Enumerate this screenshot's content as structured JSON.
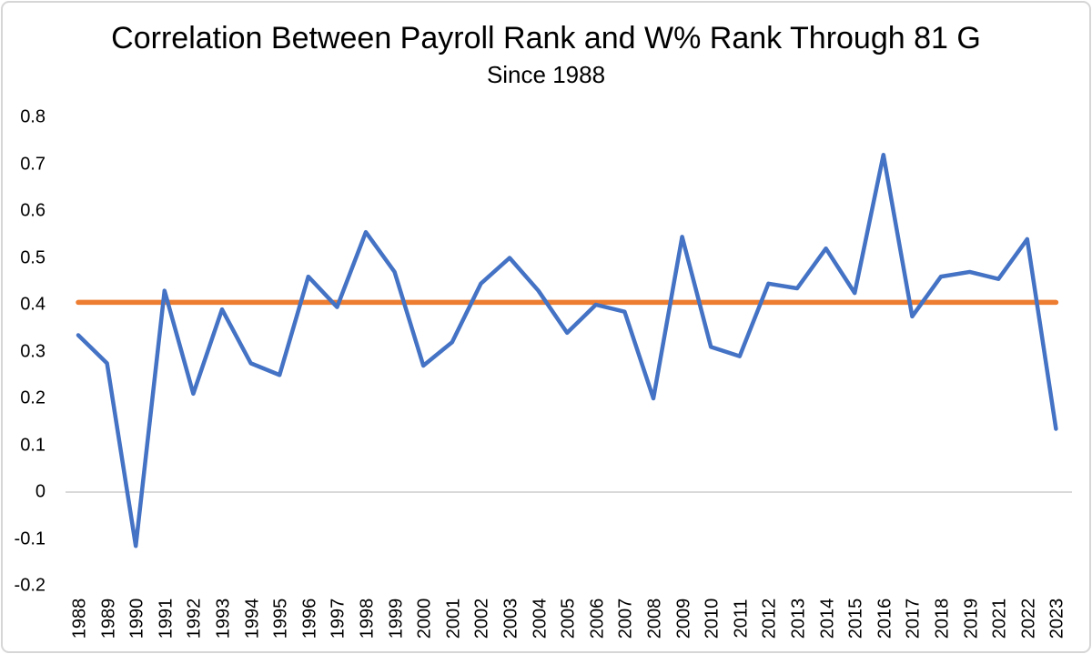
{
  "chart_data": {
    "type": "line",
    "title": "Correlation Between Payroll Rank and W% Rank Through 81 G",
    "subtitle": "Since 1988",
    "categories": [
      "1988",
      "1989",
      "1990",
      "1991",
      "1992",
      "1993",
      "1994",
      "1995",
      "1996",
      "1997",
      "1998",
      "1999",
      "2000",
      "2001",
      "2002",
      "2003",
      "2004",
      "2005",
      "2006",
      "2007",
      "2008",
      "2009",
      "2010",
      "2011",
      "2012",
      "2013",
      "2014",
      "2015",
      "2016",
      "2017",
      "2018",
      "2019",
      "2021",
      "2022",
      "2023"
    ],
    "categories_note": "2020 season omitted from axis",
    "series": [
      {
        "name": "yearly-correlation",
        "color": "#4472C4",
        "values": [
          0.335,
          0.275,
          -0.115,
          0.43,
          0.21,
          0.39,
          0.275,
          0.25,
          0.46,
          0.395,
          0.555,
          0.47,
          0.27,
          0.32,
          0.445,
          0.5,
          0.43,
          0.34,
          0.4,
          0.385,
          0.2,
          0.545,
          0.31,
          0.29,
          0.445,
          0.435,
          0.52,
          0.425,
          0.72,
          0.375,
          0.46,
          0.47,
          0.455,
          0.54,
          0.135
        ]
      },
      {
        "name": "average-reference-line",
        "color": "#ED7D31",
        "constant_value": 0.405
      }
    ],
    "xlabel": "",
    "ylabel": "",
    "ylim": [
      -0.2,
      0.8
    ],
    "ytick_values": [
      0.8,
      0.7,
      0.6,
      0.5,
      0.4,
      0.3,
      0.2,
      0.1,
      0,
      -0.1,
      -0.2
    ],
    "ytick_labels": [
      "0.8",
      "0.7",
      "0.6",
      "0.5",
      "0.4",
      "0.3",
      "0.2",
      "0.1",
      "0",
      "-0.1",
      "-0.2"
    ],
    "grid": "zero-baseline-only",
    "gridline_color": "#D9D9D9",
    "legend": "none",
    "text_color": "#000000",
    "background_color": "#FFFFFF",
    "frame_border_color": "#D6D6D6"
  }
}
